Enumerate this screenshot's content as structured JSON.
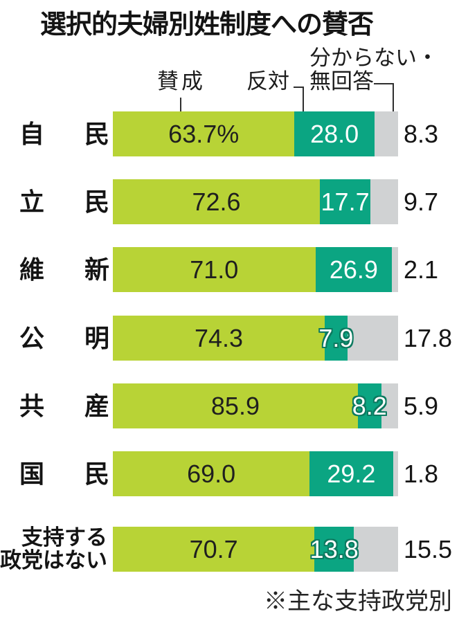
{
  "title": "選択的夫婦別姓制度への賛否",
  "footnote": "※主な支持政党別",
  "legend": {
    "agree": "賛成",
    "oppose": "反対",
    "unknown_line1": "分からない・",
    "unknown_line2": "無回答"
  },
  "colors": {
    "agree": "#b8d336",
    "oppose": "#0ba582",
    "unknown": "#d0d2d3",
    "label_on_agree": "#1f1f1f",
    "label_on_oppose": "#ffffff",
    "outline_on_narrow": "#0c7a60",
    "leader_line": "#2e2e2e"
  },
  "chart_data": {
    "type": "bar",
    "orientation": "horizontal-stacked",
    "unit": "%",
    "xlim": [
      0,
      100
    ],
    "title": "選択的夫婦別姓制度への賛否",
    "note": "※主な支持政党別",
    "categories": [
      "自民",
      "立民",
      "維新",
      "公明",
      "共産",
      "国民",
      "支持する政党はない"
    ],
    "category_lines": [
      [
        "自",
        "民"
      ],
      [
        "立",
        "民"
      ],
      [
        "維",
        "新"
      ],
      [
        "公",
        "明"
      ],
      [
        "共",
        "産"
      ],
      [
        "国",
        "民"
      ],
      [
        "支持する",
        "政党はない"
      ]
    ],
    "series": [
      {
        "name": "賛成",
        "color": "#b8d336",
        "values": [
          63.7,
          72.6,
          71.0,
          74.3,
          85.9,
          69.0,
          70.7
        ],
        "labels": [
          "63.7%",
          "72.6",
          "71.0",
          "74.3",
          "85.9",
          "69.0",
          "70.7"
        ]
      },
      {
        "name": "反対",
        "color": "#0ba582",
        "values": [
          28.0,
          17.7,
          26.9,
          7.9,
          8.2,
          29.2,
          13.8
        ],
        "labels": [
          "28.0",
          "17.7",
          "26.9",
          "7.9",
          "8.2",
          "29.2",
          "13.8"
        ]
      },
      {
        "name": "分からない・無回答",
        "color": "#d0d2d3",
        "values": [
          8.3,
          9.7,
          2.1,
          17.8,
          5.9,
          1.8,
          15.5
        ],
        "labels": [
          "8.3",
          "9.7",
          "2.1",
          "17.8",
          "5.9",
          "1.8",
          "15.5"
        ]
      }
    ]
  }
}
